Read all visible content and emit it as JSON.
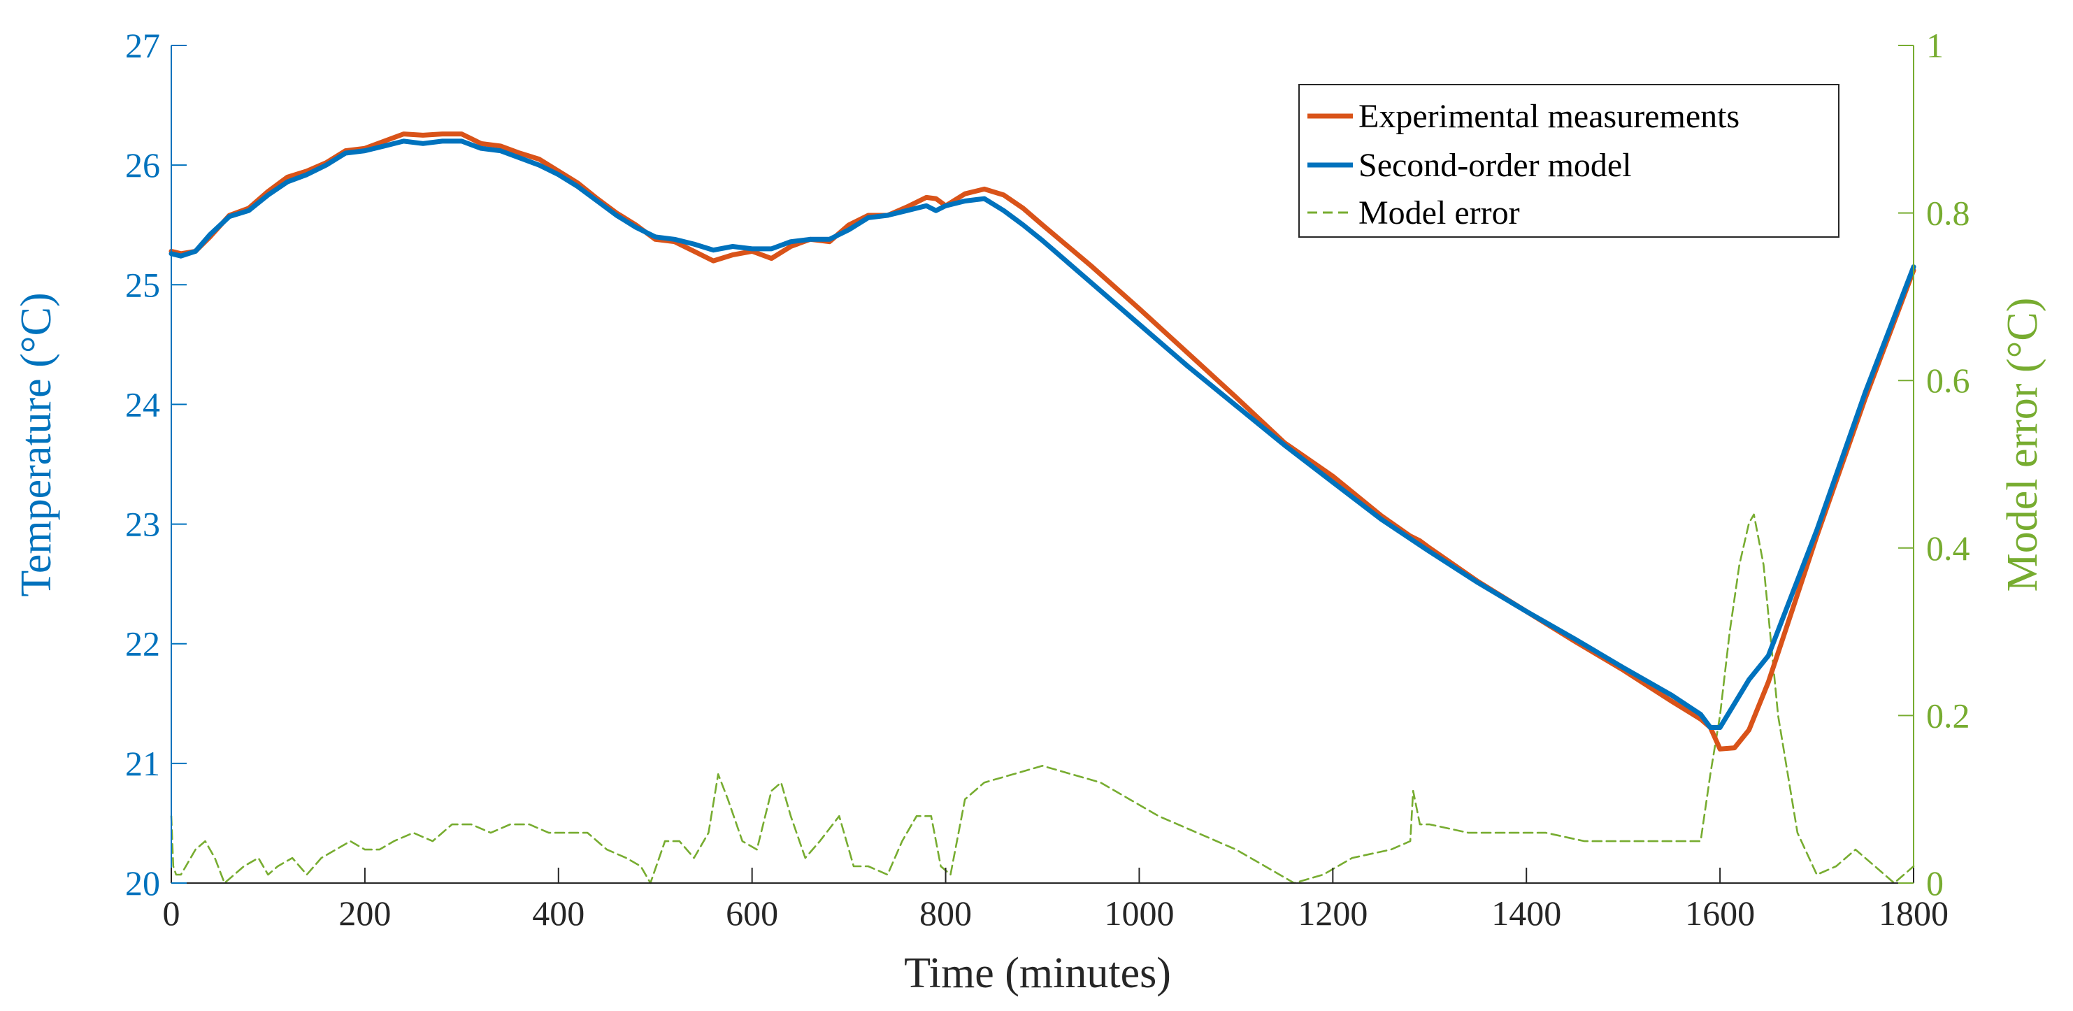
{
  "chart_data": {
    "type": "line",
    "title": "",
    "xlabel": "Time (minutes)",
    "ylabel_left": "Temperature (°C)",
    "ylabel_right": "Model error (°C)",
    "xlim": [
      0,
      1800
    ],
    "ylim_left": [
      20,
      27
    ],
    "ylim_right": [
      0,
      1
    ],
    "x_ticks": [
      "0",
      "200",
      "400",
      "600",
      "800",
      "1000",
      "1200",
      "1400",
      "1600",
      "1800"
    ],
    "y_left_ticks": [
      "20",
      "21",
      "22",
      "23",
      "24",
      "25",
      "26",
      "27"
    ],
    "y_right_ticks": [
      "0",
      "0.2",
      "0.4",
      "0.6",
      "0.8",
      "1"
    ],
    "grid": false,
    "legend_position": "top-right",
    "colors": {
      "left_axis": "#0072BD",
      "right_axis": "#77AC30",
      "experimental": "#D95319",
      "model": "#0072BD",
      "error": "#77AC30"
    },
    "series": [
      {
        "name": "Experimental measurements",
        "axis": "left",
        "style": "solid",
        "x": [
          0,
          10,
          25,
          40,
          60,
          80,
          100,
          120,
          140,
          160,
          180,
          200,
          220,
          240,
          260,
          280,
          300,
          320,
          340,
          360,
          380,
          400,
          420,
          440,
          460,
          480,
          500,
          520,
          540,
          560,
          580,
          600,
          620,
          640,
          660,
          680,
          700,
          720,
          740,
          760,
          780,
          790,
          800,
          820,
          840,
          860,
          880,
          900,
          950,
          1000,
          1050,
          1100,
          1150,
          1200,
          1250,
          1280,
          1290,
          1300,
          1350,
          1400,
          1450,
          1500,
          1550,
          1580,
          1590,
          1600,
          1615,
          1630,
          1650,
          1700,
          1750,
          1800
        ],
        "values": [
          25.28,
          25.26,
          25.28,
          25.4,
          25.58,
          25.64,
          25.78,
          25.9,
          25.95,
          26.02,
          26.12,
          26.14,
          26.2,
          26.26,
          26.25,
          26.26,
          26.26,
          26.18,
          26.16,
          26.1,
          26.05,
          25.95,
          25.85,
          25.72,
          25.6,
          25.5,
          25.38,
          25.36,
          25.28,
          25.2,
          25.25,
          25.28,
          25.22,
          25.32,
          25.38,
          25.36,
          25.5,
          25.58,
          25.58,
          25.65,
          25.73,
          25.72,
          25.66,
          25.76,
          25.8,
          25.75,
          25.64,
          25.5,
          25.16,
          24.8,
          24.43,
          24.06,
          23.68,
          23.4,
          23.07,
          22.9,
          22.86,
          22.8,
          22.52,
          22.27,
          22.02,
          21.78,
          21.52,
          21.37,
          21.3,
          21.12,
          21.13,
          21.28,
          21.68,
          22.9,
          24.05,
          25.12
        ]
      },
      {
        "name": "Second-order model",
        "axis": "left",
        "style": "solid",
        "x": [
          0,
          10,
          25,
          40,
          60,
          80,
          100,
          120,
          140,
          160,
          180,
          200,
          220,
          240,
          260,
          280,
          300,
          320,
          340,
          360,
          380,
          400,
          420,
          440,
          460,
          480,
          500,
          520,
          540,
          560,
          580,
          600,
          620,
          640,
          660,
          680,
          700,
          720,
          740,
          760,
          780,
          790,
          800,
          820,
          840,
          860,
          880,
          900,
          950,
          1000,
          1050,
          1100,
          1150,
          1200,
          1250,
          1300,
          1350,
          1400,
          1450,
          1500,
          1550,
          1580,
          1590,
          1600,
          1615,
          1630,
          1650,
          1700,
          1750,
          1800
        ],
        "values": [
          25.26,
          25.24,
          25.28,
          25.42,
          25.57,
          25.62,
          25.75,
          25.86,
          25.92,
          26.0,
          26.1,
          26.12,
          26.16,
          26.2,
          26.18,
          26.2,
          26.2,
          26.14,
          26.12,
          26.06,
          26.0,
          25.92,
          25.82,
          25.7,
          25.58,
          25.48,
          25.4,
          25.38,
          25.34,
          25.29,
          25.32,
          25.3,
          25.3,
          25.36,
          25.38,
          25.38,
          25.46,
          25.56,
          25.58,
          25.62,
          25.66,
          25.62,
          25.66,
          25.7,
          25.72,
          25.62,
          25.5,
          25.37,
          25.02,
          24.67,
          24.32,
          23.99,
          23.66,
          23.35,
          23.04,
          22.77,
          22.51,
          22.27,
          22.04,
          21.8,
          21.57,
          21.41,
          21.3,
          21.3,
          21.5,
          21.7,
          21.9,
          22.95,
          24.1,
          25.15
        ]
      },
      {
        "name": "Model error",
        "axis": "right",
        "style": "dashed",
        "x": [
          0,
          2,
          5,
          10,
          15,
          25,
          35,
          45,
          55,
          65,
          75,
          90,
          100,
          110,
          125,
          140,
          155,
          170,
          185,
          200,
          215,
          230,
          250,
          270,
          290,
          310,
          330,
          350,
          370,
          390,
          410,
          430,
          450,
          470,
          485,
          495,
          510,
          525,
          540,
          555,
          565,
          575,
          590,
          605,
          620,
          630,
          640,
          655,
          670,
          690,
          705,
          720,
          740,
          755,
          770,
          785,
          795,
          805,
          820,
          840,
          870,
          900,
          930,
          960,
          990,
          1020,
          1060,
          1100,
          1130,
          1160,
          1190,
          1220,
          1260,
          1280,
          1283,
          1290,
          1300,
          1340,
          1380,
          1420,
          1460,
          1500,
          1540,
          1560,
          1580,
          1590,
          1600,
          1610,
          1620,
          1630,
          1635,
          1645,
          1660,
          1680,
          1700,
          1720,
          1740,
          1760,
          1780,
          1800
        ],
        "values": [
          0.08,
          0.02,
          0.01,
          0.01,
          0.02,
          0.04,
          0.05,
          0.03,
          0.0,
          0.01,
          0.02,
          0.03,
          0.01,
          0.02,
          0.03,
          0.01,
          0.03,
          0.04,
          0.05,
          0.04,
          0.04,
          0.05,
          0.06,
          0.05,
          0.07,
          0.07,
          0.06,
          0.07,
          0.07,
          0.06,
          0.06,
          0.06,
          0.04,
          0.03,
          0.02,
          0.0,
          0.05,
          0.05,
          0.03,
          0.06,
          0.13,
          0.1,
          0.05,
          0.04,
          0.11,
          0.12,
          0.08,
          0.03,
          0.05,
          0.08,
          0.02,
          0.02,
          0.01,
          0.05,
          0.08,
          0.08,
          0.02,
          0.01,
          0.1,
          0.12,
          0.13,
          0.14,
          0.13,
          0.12,
          0.1,
          0.08,
          0.06,
          0.04,
          0.02,
          0.0,
          0.01,
          0.03,
          0.04,
          0.05,
          0.11,
          0.07,
          0.07,
          0.06,
          0.06,
          0.06,
          0.05,
          0.05,
          0.05,
          0.05,
          0.05,
          0.13,
          0.2,
          0.3,
          0.38,
          0.43,
          0.44,
          0.38,
          0.2,
          0.06,
          0.01,
          0.02,
          0.04,
          0.02,
          0.0,
          0.02
        ]
      }
    ]
  }
}
